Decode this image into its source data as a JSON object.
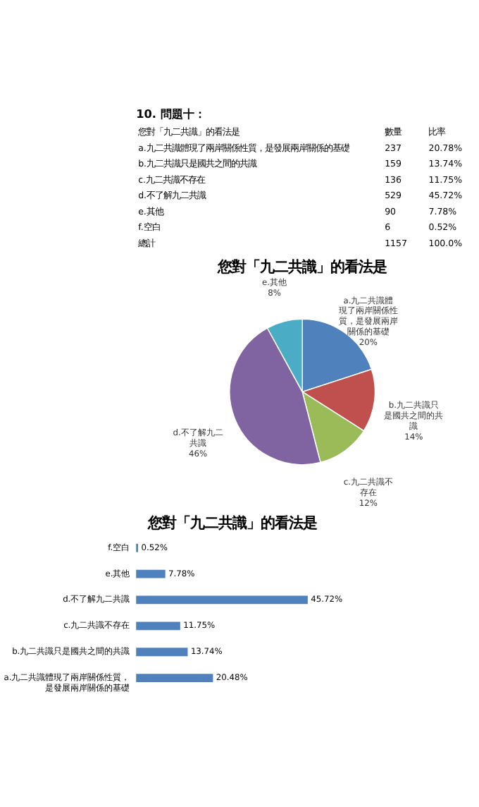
{
  "chart_data": [
    {
      "type": "other",
      "title": "10. 問題十：",
      "annotations": [
        "您對「九二共識」的看法是",
        "數量",
        "比率",
        "a.九二共識體現了兩岸關係性質，是發展兩岸關係的基礎",
        "237",
        "20.78%",
        "b.九二共識只是國共之間的共識",
        "159",
        "13.74%",
        "c.九二共識不存在",
        "136",
        "11.75%",
        "d.不了解九二共識",
        "529",
        "45.72%",
        "e.其他",
        "90",
        "7.78%",
        "f.空白",
        "6",
        "0.52%",
        "總計",
        "1157",
        "100.0%"
      ]
    },
    {
      "type": "pie",
      "title": "您對「九二共識」的看法是",
      "categories": [
        "a.九二共識體現了兩岸關係性質，是發展兩岸關係的基礎",
        "b.九二共識只是國共之間的共識",
        "c.九二共識不存在",
        "d.不了解九二共識",
        "e.其他"
      ],
      "values": [
        20,
        14,
        12,
        46,
        8
      ],
      "value_labels": [
        "20%",
        "14%",
        "12%",
        "46%",
        "8%"
      ],
      "colors": [
        "#4f81bd",
        "#c0504d",
        "#9bbb59",
        "#8064a2",
        "#4bacc6"
      ]
    },
    {
      "type": "bar",
      "orientation": "horizontal",
      "title": "您對「九二共識」的看法是",
      "categories": [
        "f.空白",
        "e.其他",
        "d.不了解九二共識",
        "c.九二共識不存在",
        "b.九二共識只是國共之間的共識",
        "a.九二共識體現了兩岸關係性質，是發展兩岸關係的基礎"
      ],
      "values": [
        0.52,
        7.78,
        45.72,
        11.75,
        13.74,
        20.48
      ],
      "value_labels": [
        "0.52%",
        "7.78%",
        "45.72%",
        "11.75%",
        "13.74%",
        "20.48%"
      ],
      "color": "#4f81bd"
    }
  ]
}
